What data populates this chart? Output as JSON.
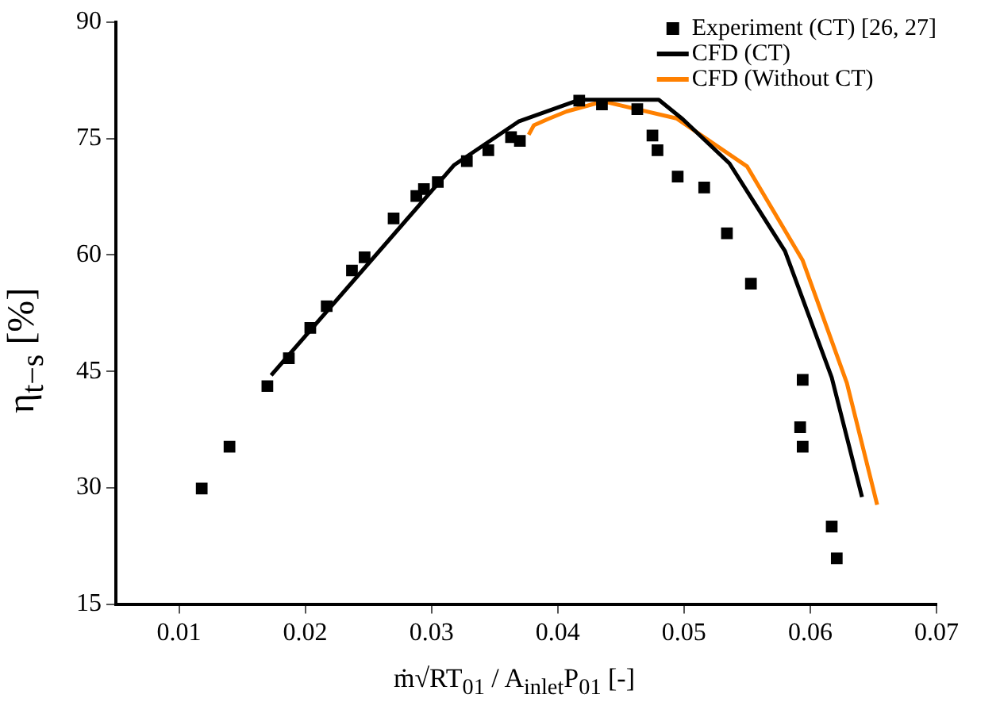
{
  "chart_data": {
    "type": "scatter",
    "xlabel": "ṁ√RT$_{01}$ / A$_{inlet}$P$_{01}$ [-]",
    "ylabel": "η$_{t−s}$ [%]",
    "xlim": [
      0.005,
      0.07
    ],
    "xticks": [
      0.01,
      0.02,
      0.03,
      0.04,
      0.05,
      0.06,
      0.07
    ],
    "ylim": [
      15,
      90
    ],
    "yticks": [
      15,
      30,
      45,
      60,
      75,
      90
    ],
    "grid": false,
    "legend": "top right",
    "series": [
      {
        "name": "Experiment (CT) [26, 27]",
        "marker": "square",
        "color": "#000000",
        "x": [
          0.0118,
          0.014,
          0.017,
          0.0187,
          0.0204,
          0.0217,
          0.0237,
          0.0247,
          0.027,
          0.0288,
          0.0294,
          0.0305,
          0.0328,
          0.0345,
          0.0363,
          0.037,
          0.0417,
          0.0435,
          0.0463,
          0.0475,
          0.0479,
          0.0495,
          0.0516,
          0.0534,
          0.0553,
          0.0594,
          0.0592,
          0.0594,
          0.0617,
          0.0621
        ],
        "values": [
          29.9,
          35.3,
          43.1,
          46.7,
          50.6,
          53.4,
          58.0,
          59.7,
          64.7,
          67.6,
          68.5,
          69.4,
          72.1,
          73.5,
          75.2,
          74.7,
          79.9,
          79.4,
          78.8,
          75.4,
          73.5,
          70.1,
          68.7,
          62.8,
          56.3,
          43.9,
          37.8,
          35.3,
          25.0,
          20.9
        ]
      },
      {
        "name": "CFD (CT)",
        "type": "line",
        "marker": "none",
        "line_style": "solid",
        "color": "#000000",
        "x": [
          0.0173,
          0.0318,
          0.0369,
          0.0417,
          0.048,
          0.0499,
          0.0536,
          0.058,
          0.0617,
          0.0641
        ],
        "values": [
          44.5,
          71.6,
          77.2,
          80.0,
          80.0,
          77.5,
          71.8,
          60.5,
          44.2,
          28.8
        ]
      },
      {
        "name": "CFD (Without CT)",
        "type": "line",
        "marker": "none",
        "line_style": "solid",
        "color": "#ff8000",
        "x": [
          0.0377,
          0.0381,
          0.0392,
          0.0407,
          0.0436,
          0.0494,
          0.055,
          0.0594,
          0.0629,
          0.0653
        ],
        "values": [
          75.5,
          76.7,
          77.5,
          78.5,
          79.8,
          77.6,
          71.4,
          59.3,
          43.5,
          27.8
        ]
      }
    ]
  }
}
